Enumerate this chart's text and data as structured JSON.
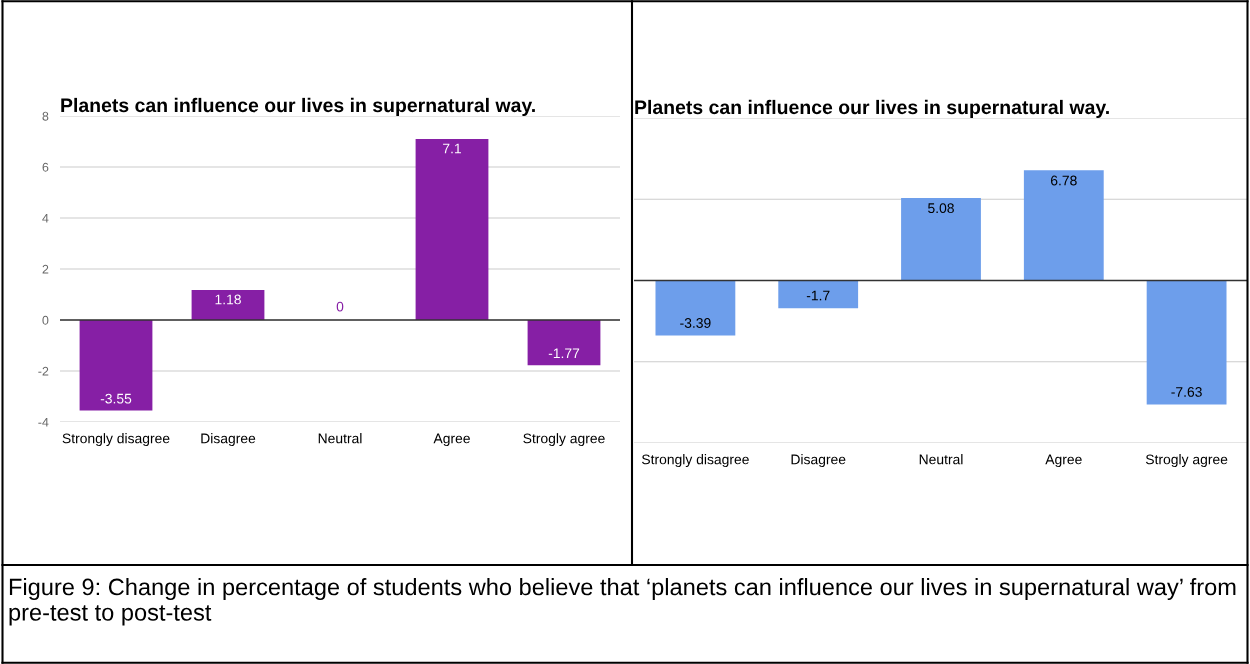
{
  "chart_data": [
    {
      "type": "bar",
      "title": "Planets can influence our lives in supernatural way.",
      "categories": [
        "Strongly disagree",
        "Disagree",
        "Neutral",
        "Agree",
        "Strogly agree"
      ],
      "values": [
        -3.55,
        1.18,
        0,
        7.1,
        -1.77
      ],
      "color": "#861fa5",
      "ylim": [
        -4,
        8
      ],
      "yticks": [
        -4,
        -2,
        0,
        2,
        4,
        6,
        8
      ],
      "grid": "y",
      "data_labels": true,
      "annotations": [
        "Figure 9: Change in percentage of students who believe that ‘planets can influence our lives in supernatural way’ from pre-test to post-test"
      ]
    },
    {
      "type": "bar",
      "title": "Planets can influence our lives in supernatural way.",
      "categories": [
        "Strongly disagree",
        "Disagree",
        "Neutral",
        "Agree",
        "Strogly agree"
      ],
      "values": [
        -3.39,
        -1.7,
        5.08,
        6.78,
        -7.63
      ],
      "color": "#6d9eeb",
      "ylim": [
        -10,
        10
      ],
      "yticks": [
        {
          "value": -10,
          "label": null
        },
        {
          "value": -5,
          "label": null
        },
        {
          "value": 0,
          "label": null
        },
        {
          "value": 5,
          "label": null
        },
        {
          "value": 10,
          "label": null
        }
      ],
      "grid": "y",
      "data_labels": true,
      "tick_labels": "x"
    }
  ]
}
